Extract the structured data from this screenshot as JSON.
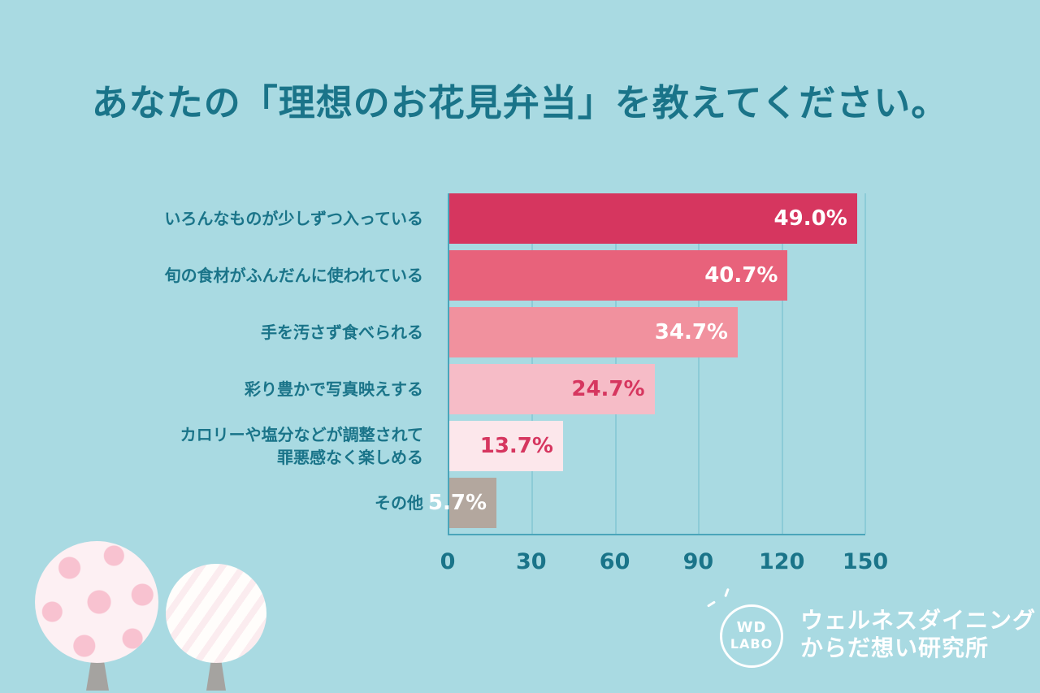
{
  "header": {
    "title": "あなたの「理想のお花見弁当」を教えてください。"
  },
  "chart_data": {
    "type": "bar",
    "orientation": "horizontal",
    "title": "あなたの「理想のお花見弁当」を教えてください。",
    "categories": [
      "いろんなものが少しずつ入っている",
      "旬の食材がふんだんに使われている",
      "手を汚さず食べられる",
      "彩り豊かで写真映えする",
      "カロリーや塩分などが調整されて\n罪悪感なく楽しめる",
      "その他"
    ],
    "values": [
      147,
      122,
      104,
      74,
      41,
      17
    ],
    "percents": [
      49.0,
      40.7,
      34.7,
      24.7,
      13.7,
      5.7
    ],
    "value_labels": [
      "49.0%",
      "40.7%",
      "34.7%",
      "24.7%",
      "13.7%",
      "5.7%"
    ],
    "bar_colors": [
      "#d6365f",
      "#e8627b",
      "#f1919e",
      "#f6bcc7",
      "#fce7eb",
      "#b3a79e"
    ],
    "value_label_colors": [
      "#ffffff",
      "#ffffff",
      "#ffffff",
      "#d6365f",
      "#d6365f",
      "#ffffff"
    ],
    "xlim": [
      0,
      150
    ],
    "x_ticks": [
      0,
      30,
      60,
      90,
      120,
      150
    ],
    "grid": true,
    "legend": false
  },
  "footer": {
    "logo_text_top": "WD",
    "logo_text_bottom": "LABO",
    "org_name_line1": "ウェルネスダイニング",
    "org_name_line2": "からだ想い研究所"
  },
  "colors": {
    "background": "#a9dae2",
    "title_text": "#1a7489",
    "axis_line": "#4aa5ba",
    "gridline": "#8ccbd7"
  }
}
